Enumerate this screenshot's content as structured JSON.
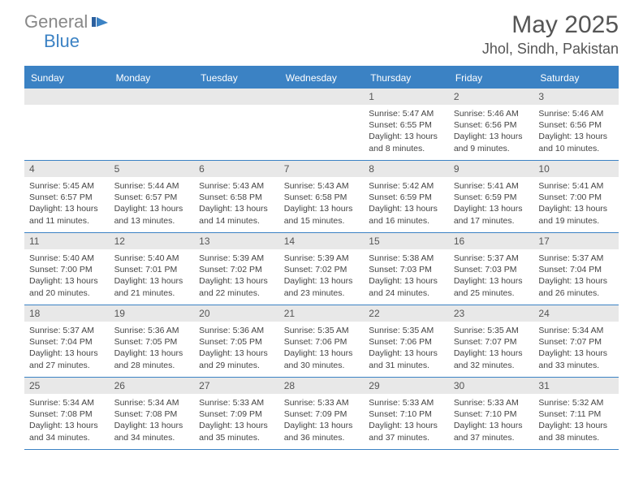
{
  "brand": {
    "part1": "General",
    "part2": "Blue"
  },
  "title": "May 2025",
  "location": "Jhol, Sindh, Pakistan",
  "colors": {
    "header_bg": "#3b82c4",
    "daynum_bg": "#e8e8e8",
    "text": "#444444",
    "title_text": "#555555",
    "logo_gray": "#888888"
  },
  "typography": {
    "title_fontsize": 30,
    "location_fontsize": 18,
    "weekday_fontsize": 12,
    "body_fontsize": 10.5
  },
  "weekdays": [
    "Sunday",
    "Monday",
    "Tuesday",
    "Wednesday",
    "Thursday",
    "Friday",
    "Saturday"
  ],
  "weeks": [
    [
      {
        "day": "",
        "sunrise": "",
        "sunset": "",
        "daylight": ""
      },
      {
        "day": "",
        "sunrise": "",
        "sunset": "",
        "daylight": ""
      },
      {
        "day": "",
        "sunrise": "",
        "sunset": "",
        "daylight": ""
      },
      {
        "day": "",
        "sunrise": "",
        "sunset": "",
        "daylight": ""
      },
      {
        "day": "1",
        "sunrise": "Sunrise: 5:47 AM",
        "sunset": "Sunset: 6:55 PM",
        "daylight": "Daylight: 13 hours and 8 minutes."
      },
      {
        "day": "2",
        "sunrise": "Sunrise: 5:46 AM",
        "sunset": "Sunset: 6:56 PM",
        "daylight": "Daylight: 13 hours and 9 minutes."
      },
      {
        "day": "3",
        "sunrise": "Sunrise: 5:46 AM",
        "sunset": "Sunset: 6:56 PM",
        "daylight": "Daylight: 13 hours and 10 minutes."
      }
    ],
    [
      {
        "day": "4",
        "sunrise": "Sunrise: 5:45 AM",
        "sunset": "Sunset: 6:57 PM",
        "daylight": "Daylight: 13 hours and 11 minutes."
      },
      {
        "day": "5",
        "sunrise": "Sunrise: 5:44 AM",
        "sunset": "Sunset: 6:57 PM",
        "daylight": "Daylight: 13 hours and 13 minutes."
      },
      {
        "day": "6",
        "sunrise": "Sunrise: 5:43 AM",
        "sunset": "Sunset: 6:58 PM",
        "daylight": "Daylight: 13 hours and 14 minutes."
      },
      {
        "day": "7",
        "sunrise": "Sunrise: 5:43 AM",
        "sunset": "Sunset: 6:58 PM",
        "daylight": "Daylight: 13 hours and 15 minutes."
      },
      {
        "day": "8",
        "sunrise": "Sunrise: 5:42 AM",
        "sunset": "Sunset: 6:59 PM",
        "daylight": "Daylight: 13 hours and 16 minutes."
      },
      {
        "day": "9",
        "sunrise": "Sunrise: 5:41 AM",
        "sunset": "Sunset: 6:59 PM",
        "daylight": "Daylight: 13 hours and 17 minutes."
      },
      {
        "day": "10",
        "sunrise": "Sunrise: 5:41 AM",
        "sunset": "Sunset: 7:00 PM",
        "daylight": "Daylight: 13 hours and 19 minutes."
      }
    ],
    [
      {
        "day": "11",
        "sunrise": "Sunrise: 5:40 AM",
        "sunset": "Sunset: 7:00 PM",
        "daylight": "Daylight: 13 hours and 20 minutes."
      },
      {
        "day": "12",
        "sunrise": "Sunrise: 5:40 AM",
        "sunset": "Sunset: 7:01 PM",
        "daylight": "Daylight: 13 hours and 21 minutes."
      },
      {
        "day": "13",
        "sunrise": "Sunrise: 5:39 AM",
        "sunset": "Sunset: 7:02 PM",
        "daylight": "Daylight: 13 hours and 22 minutes."
      },
      {
        "day": "14",
        "sunrise": "Sunrise: 5:39 AM",
        "sunset": "Sunset: 7:02 PM",
        "daylight": "Daylight: 13 hours and 23 minutes."
      },
      {
        "day": "15",
        "sunrise": "Sunrise: 5:38 AM",
        "sunset": "Sunset: 7:03 PM",
        "daylight": "Daylight: 13 hours and 24 minutes."
      },
      {
        "day": "16",
        "sunrise": "Sunrise: 5:37 AM",
        "sunset": "Sunset: 7:03 PM",
        "daylight": "Daylight: 13 hours and 25 minutes."
      },
      {
        "day": "17",
        "sunrise": "Sunrise: 5:37 AM",
        "sunset": "Sunset: 7:04 PM",
        "daylight": "Daylight: 13 hours and 26 minutes."
      }
    ],
    [
      {
        "day": "18",
        "sunrise": "Sunrise: 5:37 AM",
        "sunset": "Sunset: 7:04 PM",
        "daylight": "Daylight: 13 hours and 27 minutes."
      },
      {
        "day": "19",
        "sunrise": "Sunrise: 5:36 AM",
        "sunset": "Sunset: 7:05 PM",
        "daylight": "Daylight: 13 hours and 28 minutes."
      },
      {
        "day": "20",
        "sunrise": "Sunrise: 5:36 AM",
        "sunset": "Sunset: 7:05 PM",
        "daylight": "Daylight: 13 hours and 29 minutes."
      },
      {
        "day": "21",
        "sunrise": "Sunrise: 5:35 AM",
        "sunset": "Sunset: 7:06 PM",
        "daylight": "Daylight: 13 hours and 30 minutes."
      },
      {
        "day": "22",
        "sunrise": "Sunrise: 5:35 AM",
        "sunset": "Sunset: 7:06 PM",
        "daylight": "Daylight: 13 hours and 31 minutes."
      },
      {
        "day": "23",
        "sunrise": "Sunrise: 5:35 AM",
        "sunset": "Sunset: 7:07 PM",
        "daylight": "Daylight: 13 hours and 32 minutes."
      },
      {
        "day": "24",
        "sunrise": "Sunrise: 5:34 AM",
        "sunset": "Sunset: 7:07 PM",
        "daylight": "Daylight: 13 hours and 33 minutes."
      }
    ],
    [
      {
        "day": "25",
        "sunrise": "Sunrise: 5:34 AM",
        "sunset": "Sunset: 7:08 PM",
        "daylight": "Daylight: 13 hours and 34 minutes."
      },
      {
        "day": "26",
        "sunrise": "Sunrise: 5:34 AM",
        "sunset": "Sunset: 7:08 PM",
        "daylight": "Daylight: 13 hours and 34 minutes."
      },
      {
        "day": "27",
        "sunrise": "Sunrise: 5:33 AM",
        "sunset": "Sunset: 7:09 PM",
        "daylight": "Daylight: 13 hours and 35 minutes."
      },
      {
        "day": "28",
        "sunrise": "Sunrise: 5:33 AM",
        "sunset": "Sunset: 7:09 PM",
        "daylight": "Daylight: 13 hours and 36 minutes."
      },
      {
        "day": "29",
        "sunrise": "Sunrise: 5:33 AM",
        "sunset": "Sunset: 7:10 PM",
        "daylight": "Daylight: 13 hours and 37 minutes."
      },
      {
        "day": "30",
        "sunrise": "Sunrise: 5:33 AM",
        "sunset": "Sunset: 7:10 PM",
        "daylight": "Daylight: 13 hours and 37 minutes."
      },
      {
        "day": "31",
        "sunrise": "Sunrise: 5:32 AM",
        "sunset": "Sunset: 7:11 PM",
        "daylight": "Daylight: 13 hours and 38 minutes."
      }
    ]
  ]
}
